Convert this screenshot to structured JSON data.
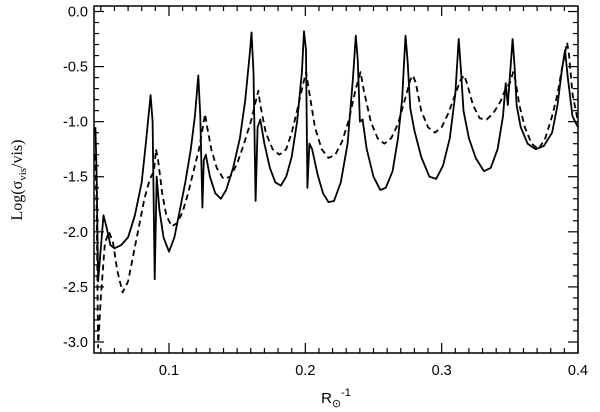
{
  "chart_data": {
    "type": "line",
    "xlabel": {
      "main": "R",
      "sub": "⊙",
      "sup": "-1"
    },
    "ylabel": {
      "main": "Log(σ",
      "sub": "vis",
      "rest": "/vis)"
    },
    "xlim": [
      0.045,
      0.4
    ],
    "ylim": [
      -3.1,
      0.05
    ],
    "x_ticks": [
      0.1,
      0.2,
      0.3,
      0.4
    ],
    "x_tick_labels": [
      "0.1",
      "0.2",
      "0.3",
      "0.4"
    ],
    "y_ticks": [
      0.0,
      -0.5,
      -1.0,
      -1.5,
      -2.0,
      -2.5,
      -3.0
    ],
    "y_tick_labels": [
      "0.0",
      "-0.5",
      "-1.0",
      "-1.5",
      "-2.0",
      "-2.5",
      "-3.0"
    ],
    "grid": false,
    "legend": "none",
    "series": [
      {
        "style": "solid",
        "color": "#000000",
        "points": [
          [
            0.046,
            -1.05
          ],
          [
            0.047,
            -1.5
          ],
          [
            0.048,
            -2.45
          ],
          [
            0.05,
            -2.15
          ],
          [
            0.052,
            -1.85
          ],
          [
            0.054,
            -1.95
          ],
          [
            0.057,
            -2.12
          ],
          [
            0.06,
            -2.15
          ],
          [
            0.065,
            -2.12
          ],
          [
            0.07,
            -2.05
          ],
          [
            0.075,
            -1.85
          ],
          [
            0.08,
            -1.55
          ],
          [
            0.083,
            -1.2
          ],
          [
            0.085,
            -0.95
          ],
          [
            0.0865,
            -0.76
          ],
          [
            0.088,
            -1.0
          ],
          [
            0.0895,
            -2.43
          ],
          [
            0.091,
            -1.5
          ],
          [
            0.093,
            -1.8
          ],
          [
            0.096,
            -2.05
          ],
          [
            0.1,
            -2.18
          ],
          [
            0.104,
            -2.05
          ],
          [
            0.108,
            -1.8
          ],
          [
            0.112,
            -1.55
          ],
          [
            0.116,
            -1.25
          ],
          [
            0.119,
            -0.95
          ],
          [
            0.1215,
            -0.58
          ],
          [
            0.123,
            -0.95
          ],
          [
            0.1245,
            -1.78
          ],
          [
            0.1255,
            -1.35
          ],
          [
            0.127,
            -1.3
          ],
          [
            0.13,
            -1.5
          ],
          [
            0.134,
            -1.65
          ],
          [
            0.138,
            -1.7
          ],
          [
            0.142,
            -1.62
          ],
          [
            0.147,
            -1.42
          ],
          [
            0.152,
            -1.15
          ],
          [
            0.156,
            -0.8
          ],
          [
            0.1595,
            -0.35
          ],
          [
            0.1605,
            -0.19
          ],
          [
            0.162,
            -0.55
          ],
          [
            0.1635,
            -1.72
          ],
          [
            0.165,
            -1.05
          ],
          [
            0.167,
            -0.98
          ],
          [
            0.17,
            -1.2
          ],
          [
            0.174,
            -1.42
          ],
          [
            0.178,
            -1.55
          ],
          [
            0.182,
            -1.58
          ],
          [
            0.186,
            -1.5
          ],
          [
            0.19,
            -1.32
          ],
          [
            0.194,
            -1.0
          ],
          [
            0.1975,
            -0.55
          ],
          [
            0.199,
            -0.18
          ],
          [
            0.2005,
            -0.35
          ],
          [
            0.2015,
            -1.6
          ],
          [
            0.203,
            -1.2
          ],
          [
            0.205,
            -1.25
          ],
          [
            0.209,
            -1.48
          ],
          [
            0.213,
            -1.65
          ],
          [
            0.217,
            -1.73
          ],
          [
            0.221,
            -1.72
          ],
          [
            0.226,
            -1.55
          ],
          [
            0.231,
            -1.2
          ],
          [
            0.235,
            -0.6
          ],
          [
            0.237,
            -0.22
          ],
          [
            0.2385,
            -0.45
          ],
          [
            0.24,
            -1.0
          ],
          [
            0.242,
            -0.98
          ],
          [
            0.245,
            -1.25
          ],
          [
            0.25,
            -1.5
          ],
          [
            0.255,
            -1.62
          ],
          [
            0.259,
            -1.6
          ],
          [
            0.264,
            -1.45
          ],
          [
            0.268,
            -1.15
          ],
          [
            0.271,
            -0.8
          ],
          [
            0.2735,
            -0.22
          ],
          [
            0.275,
            -0.45
          ],
          [
            0.277,
            -0.88
          ],
          [
            0.28,
            -1.08
          ],
          [
            0.285,
            -1.32
          ],
          [
            0.291,
            -1.5
          ],
          [
            0.296,
            -1.52
          ],
          [
            0.301,
            -1.4
          ],
          [
            0.306,
            -1.15
          ],
          [
            0.31,
            -0.75
          ],
          [
            0.3125,
            -0.25
          ],
          [
            0.314,
            -0.5
          ],
          [
            0.316,
            -0.9
          ],
          [
            0.32,
            -1.15
          ],
          [
            0.325,
            -1.33
          ],
          [
            0.331,
            -1.45
          ],
          [
            0.336,
            -1.42
          ],
          [
            0.341,
            -1.25
          ],
          [
            0.345,
            -0.95
          ],
          [
            0.347,
            -0.65
          ],
          [
            0.3485,
            -0.85
          ],
          [
            0.35,
            -0.6
          ],
          [
            0.352,
            -0.25
          ],
          [
            0.3535,
            -0.5
          ],
          [
            0.355,
            -0.85
          ],
          [
            0.358,
            -1.05
          ],
          [
            0.363,
            -1.2
          ],
          [
            0.369,
            -1.25
          ],
          [
            0.375,
            -1.22
          ],
          [
            0.381,
            -1.1
          ],
          [
            0.385,
            -0.85
          ],
          [
            0.388,
            -0.55
          ],
          [
            0.3905,
            -0.35
          ],
          [
            0.3925,
            -0.6
          ],
          [
            0.396,
            -0.95
          ],
          [
            0.4,
            -1.05
          ]
        ]
      },
      {
        "style": "dashed",
        "color": "#000000",
        "points": [
          [
            0.046,
            -1.3
          ],
          [
            0.047,
            -1.8
          ],
          [
            0.048,
            -3.05
          ],
          [
            0.05,
            -2.6
          ],
          [
            0.053,
            -2.1
          ],
          [
            0.056,
            -2.0
          ],
          [
            0.059,
            -2.1
          ],
          [
            0.062,
            -2.35
          ],
          [
            0.066,
            -2.55
          ],
          [
            0.07,
            -2.45
          ],
          [
            0.074,
            -2.2
          ],
          [
            0.078,
            -1.95
          ],
          [
            0.082,
            -1.7
          ],
          [
            0.086,
            -1.52
          ],
          [
            0.089,
            -1.45
          ],
          [
            0.0905,
            -1.25
          ],
          [
            0.092,
            -1.35
          ],
          [
            0.095,
            -1.65
          ],
          [
            0.098,
            -1.85
          ],
          [
            0.102,
            -1.95
          ],
          [
            0.106,
            -1.92
          ],
          [
            0.11,
            -1.82
          ],
          [
            0.114,
            -1.65
          ],
          [
            0.118,
            -1.45
          ],
          [
            0.122,
            -1.25
          ],
          [
            0.1265,
            -0.93
          ],
          [
            0.128,
            -1.05
          ],
          [
            0.131,
            -1.25
          ],
          [
            0.135,
            -1.42
          ],
          [
            0.14,
            -1.52
          ],
          [
            0.145,
            -1.5
          ],
          [
            0.15,
            -1.38
          ],
          [
            0.155,
            -1.2
          ],
          [
            0.16,
            -1.0
          ],
          [
            0.164,
            -0.8
          ],
          [
            0.1655,
            -0.72
          ],
          [
            0.167,
            -0.85
          ],
          [
            0.171,
            -1.1
          ],
          [
            0.176,
            -1.25
          ],
          [
            0.181,
            -1.3
          ],
          [
            0.186,
            -1.25
          ],
          [
            0.19,
            -1.1
          ],
          [
            0.194,
            -0.9
          ],
          [
            0.198,
            -0.68
          ],
          [
            0.2005,
            -0.55
          ],
          [
            0.2025,
            -0.7
          ],
          [
            0.207,
            -1.05
          ],
          [
            0.212,
            -1.25
          ],
          [
            0.217,
            -1.33
          ],
          [
            0.222,
            -1.3
          ],
          [
            0.227,
            -1.18
          ],
          [
            0.232,
            -0.98
          ],
          [
            0.237,
            -0.7
          ],
          [
            0.2405,
            -0.55
          ],
          [
            0.243,
            -0.72
          ],
          [
            0.248,
            -1.0
          ],
          [
            0.253,
            -1.15
          ],
          [
            0.258,
            -1.2
          ],
          [
            0.263,
            -1.15
          ],
          [
            0.268,
            -1.02
          ],
          [
            0.273,
            -0.8
          ],
          [
            0.277,
            -0.62
          ],
          [
            0.279,
            -0.58
          ],
          [
            0.281,
            -0.65
          ],
          [
            0.285,
            -0.9
          ],
          [
            0.29,
            -1.05
          ],
          [
            0.295,
            -1.1
          ],
          [
            0.3,
            -1.05
          ],
          [
            0.305,
            -0.92
          ],
          [
            0.31,
            -0.75
          ],
          [
            0.314,
            -0.62
          ],
          [
            0.3165,
            -0.58
          ],
          [
            0.3185,
            -0.65
          ],
          [
            0.323,
            -0.85
          ],
          [
            0.328,
            -0.97
          ],
          [
            0.333,
            -0.98
          ],
          [
            0.338,
            -0.92
          ],
          [
            0.343,
            -0.82
          ],
          [
            0.347,
            -0.7
          ],
          [
            0.35,
            -0.65
          ],
          [
            0.3525,
            -0.55
          ],
          [
            0.354,
            -0.62
          ],
          [
            0.357,
            -0.85
          ],
          [
            0.361,
            -1.05
          ],
          [
            0.366,
            -1.2
          ],
          [
            0.371,
            -1.25
          ],
          [
            0.376,
            -1.15
          ],
          [
            0.381,
            -0.95
          ],
          [
            0.385,
            -0.75
          ],
          [
            0.3885,
            -0.5
          ],
          [
            0.3905,
            -0.38
          ],
          [
            0.392,
            -0.28
          ],
          [
            0.3935,
            -0.4
          ],
          [
            0.396,
            -0.75
          ],
          [
            0.4,
            -1.0
          ]
        ]
      }
    ]
  }
}
